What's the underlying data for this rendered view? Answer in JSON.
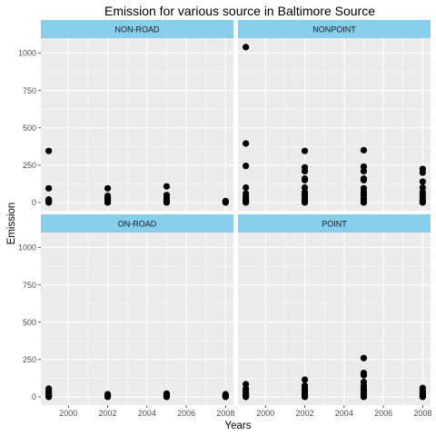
{
  "chart_data": {
    "type": "scatter",
    "title": "Emission for various source in Baltimore Source",
    "xlabel": "Years",
    "ylabel": "Emission",
    "xlim": [
      1998.6,
      2008.4
    ],
    "ylim": [
      -55,
      1100
    ],
    "x_ticks": [
      2000,
      2002,
      2004,
      2006,
      2008
    ],
    "y_ticks": [
      0,
      250,
      500,
      750,
      1000
    ],
    "grid": true,
    "layout": "facet-wrap-2x2",
    "colors": {
      "panel_bg": "#EBEBEB",
      "grid": "#FFFFFF",
      "strip_bg": "#87CEEB",
      "point": "#000000"
    },
    "facets": [
      {
        "name": "NON-ROAD",
        "points": [
          {
            "x": 1999,
            "y": 345
          },
          {
            "x": 1999,
            "y": 95
          },
          {
            "x": 1999,
            "y": 20
          },
          {
            "x": 1999,
            "y": 10
          },
          {
            "x": 1999,
            "y": 5
          },
          {
            "x": 1999,
            "y": 0
          },
          {
            "x": 2002,
            "y": 95
          },
          {
            "x": 2002,
            "y": 45
          },
          {
            "x": 2002,
            "y": 30
          },
          {
            "x": 2002,
            "y": 20
          },
          {
            "x": 2002,
            "y": 10
          },
          {
            "x": 2002,
            "y": 5
          },
          {
            "x": 2002,
            "y": 0
          },
          {
            "x": 2005,
            "y": 108
          },
          {
            "x": 2005,
            "y": 50
          },
          {
            "x": 2005,
            "y": 30
          },
          {
            "x": 2005,
            "y": 15
          },
          {
            "x": 2005,
            "y": 5
          },
          {
            "x": 2005,
            "y": 0
          },
          {
            "x": 2008,
            "y": 10
          },
          {
            "x": 2008,
            "y": 5
          },
          {
            "x": 2008,
            "y": 0
          }
        ]
      },
      {
        "name": "NONPOINT",
        "points": [
          {
            "x": 1999,
            "y": 1040
          },
          {
            "x": 1999,
            "y": 395
          },
          {
            "x": 1999,
            "y": 245
          },
          {
            "x": 1999,
            "y": 100
          },
          {
            "x": 1999,
            "y": 60
          },
          {
            "x": 1999,
            "y": 40
          },
          {
            "x": 1999,
            "y": 25
          },
          {
            "x": 1999,
            "y": 15
          },
          {
            "x": 1999,
            "y": 5
          },
          {
            "x": 1999,
            "y": 0
          },
          {
            "x": 2002,
            "y": 345
          },
          {
            "x": 2002,
            "y": 235
          },
          {
            "x": 2002,
            "y": 210
          },
          {
            "x": 2002,
            "y": 160
          },
          {
            "x": 2002,
            "y": 150
          },
          {
            "x": 2002,
            "y": 100
          },
          {
            "x": 2002,
            "y": 70
          },
          {
            "x": 2002,
            "y": 50
          },
          {
            "x": 2002,
            "y": 30
          },
          {
            "x": 2002,
            "y": 15
          },
          {
            "x": 2002,
            "y": 5
          },
          {
            "x": 2002,
            "y": 0
          },
          {
            "x": 2005,
            "y": 350
          },
          {
            "x": 2005,
            "y": 240
          },
          {
            "x": 2005,
            "y": 210
          },
          {
            "x": 2005,
            "y": 160
          },
          {
            "x": 2005,
            "y": 150
          },
          {
            "x": 2005,
            "y": 95
          },
          {
            "x": 2005,
            "y": 70
          },
          {
            "x": 2005,
            "y": 50
          },
          {
            "x": 2005,
            "y": 30
          },
          {
            "x": 2005,
            "y": 15
          },
          {
            "x": 2005,
            "y": 5
          },
          {
            "x": 2005,
            "y": 0
          },
          {
            "x": 2008,
            "y": 225
          },
          {
            "x": 2008,
            "y": 200
          },
          {
            "x": 2008,
            "y": 140
          },
          {
            "x": 2008,
            "y": 100
          },
          {
            "x": 2008,
            "y": 70
          },
          {
            "x": 2008,
            "y": 50
          },
          {
            "x": 2008,
            "y": 30
          },
          {
            "x": 2008,
            "y": 15
          },
          {
            "x": 2008,
            "y": 5
          },
          {
            "x": 2008,
            "y": 0
          }
        ]
      },
      {
        "name": "ON-ROAD",
        "points": [
          {
            "x": 1999,
            "y": 55
          },
          {
            "x": 1999,
            "y": 40
          },
          {
            "x": 1999,
            "y": 30
          },
          {
            "x": 1999,
            "y": 20
          },
          {
            "x": 1999,
            "y": 10
          },
          {
            "x": 1999,
            "y": 5
          },
          {
            "x": 1999,
            "y": 0
          },
          {
            "x": 2002,
            "y": 18
          },
          {
            "x": 2002,
            "y": 10
          },
          {
            "x": 2002,
            "y": 5
          },
          {
            "x": 2002,
            "y": 0
          },
          {
            "x": 2005,
            "y": 22
          },
          {
            "x": 2005,
            "y": 12
          },
          {
            "x": 2005,
            "y": 5
          },
          {
            "x": 2005,
            "y": 0
          },
          {
            "x": 2008,
            "y": 18
          },
          {
            "x": 2008,
            "y": 10
          },
          {
            "x": 2008,
            "y": 5
          },
          {
            "x": 2008,
            "y": 0
          }
        ]
      },
      {
        "name": "POINT",
        "points": [
          {
            "x": 1999,
            "y": 85
          },
          {
            "x": 1999,
            "y": 55
          },
          {
            "x": 1999,
            "y": 40
          },
          {
            "x": 1999,
            "y": 25
          },
          {
            "x": 1999,
            "y": 15
          },
          {
            "x": 1999,
            "y": 5
          },
          {
            "x": 1999,
            "y": 0
          },
          {
            "x": 2002,
            "y": 115
          },
          {
            "x": 2002,
            "y": 75
          },
          {
            "x": 2002,
            "y": 55
          },
          {
            "x": 2002,
            "y": 40
          },
          {
            "x": 2002,
            "y": 25
          },
          {
            "x": 2002,
            "y": 15
          },
          {
            "x": 2002,
            "y": 5
          },
          {
            "x": 2002,
            "y": 0
          },
          {
            "x": 2005,
            "y": 260
          },
          {
            "x": 2005,
            "y": 160
          },
          {
            "x": 2005,
            "y": 145
          },
          {
            "x": 2005,
            "y": 100
          },
          {
            "x": 2005,
            "y": 75
          },
          {
            "x": 2005,
            "y": 55
          },
          {
            "x": 2005,
            "y": 40
          },
          {
            "x": 2005,
            "y": 25
          },
          {
            "x": 2005,
            "y": 15
          },
          {
            "x": 2005,
            "y": 5
          },
          {
            "x": 2005,
            "y": 0
          },
          {
            "x": 2008,
            "y": 60
          },
          {
            "x": 2008,
            "y": 40
          },
          {
            "x": 2008,
            "y": 25
          },
          {
            "x": 2008,
            "y": 15
          },
          {
            "x": 2008,
            "y": 5
          },
          {
            "x": 2008,
            "y": 0
          }
        ]
      }
    ]
  }
}
